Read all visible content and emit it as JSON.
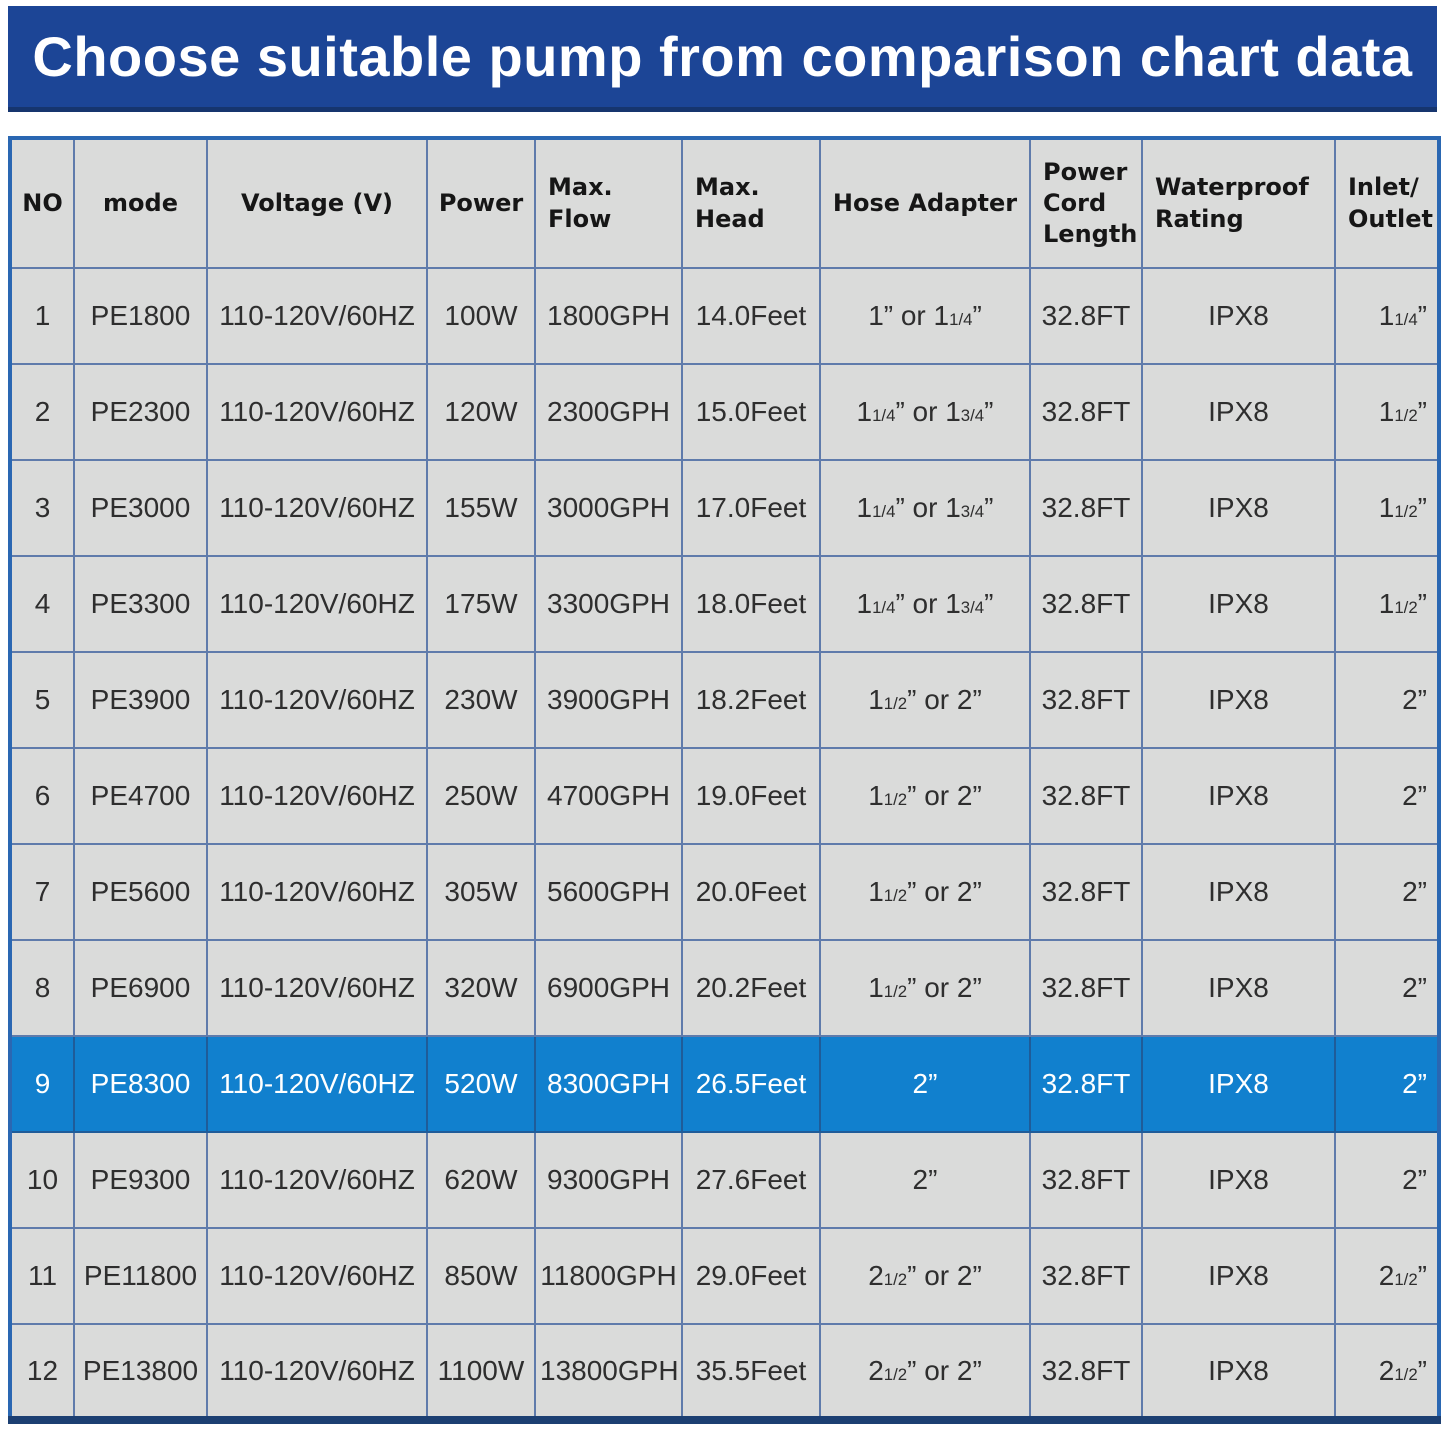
{
  "title": "Choose suitable pump from comparison chart data",
  "colors": {
    "banner": "#1c4596",
    "banner_edge": "#16356e",
    "highlight": "#1180ce",
    "cell_bg": "#dadbda",
    "grid": "#5f7bab",
    "outer_border": "#2a67b2",
    "bottom_border": "#1c3f72",
    "header_text": "#161616",
    "data_text": "#2e2e2e",
    "title_text": "#ffffff"
  },
  "table": {
    "headers": [
      "NO",
      "mode",
      "Voltage (V)",
      "Power",
      "Max.\nFlow",
      "Max.\nHead",
      "Hose Adapter",
      "Power\nCord\nLength",
      "Waterproof\nRating",
      "Inlet/\nOutlet"
    ],
    "rows": [
      {
        "no": 1,
        "mode": "PE1800",
        "voltage": "110-120V/60HZ",
        "power": "100W",
        "flow": "1800GPH",
        "head": "14.0Feet",
        "hose": "1” or 1¼”",
        "cord": "32.8FT",
        "waterproof": "IPX8",
        "inlet": "1¼”",
        "highlight": false
      },
      {
        "no": 2,
        "mode": "PE2300",
        "voltage": "110-120V/60HZ",
        "power": "120W",
        "flow": "2300GPH",
        "head": "15.0Feet",
        "hose": "1¼” or 1¾”",
        "cord": "32.8FT",
        "waterproof": "IPX8",
        "inlet": "1½”",
        "highlight": false
      },
      {
        "no": 3,
        "mode": "PE3000",
        "voltage": "110-120V/60HZ",
        "power": "155W",
        "flow": "3000GPH",
        "head": "17.0Feet",
        "hose": "1¼” or 1¾”",
        "cord": "32.8FT",
        "waterproof": "IPX8",
        "inlet": "1½”",
        "highlight": false
      },
      {
        "no": 4,
        "mode": "PE3300",
        "voltage": "110-120V/60HZ",
        "power": "175W",
        "flow": "3300GPH",
        "head": "18.0Feet",
        "hose": "1¼” or 1¾”",
        "cord": "32.8FT",
        "waterproof": "IPX8",
        "inlet": "1½”",
        "highlight": false
      },
      {
        "no": 5,
        "mode": "PE3900",
        "voltage": "110-120V/60HZ",
        "power": "230W",
        "flow": "3900GPH",
        "head": "18.2Feet",
        "hose": "1½” or 2”",
        "cord": "32.8FT",
        "waterproof": "IPX8",
        "inlet": "2”",
        "highlight": false
      },
      {
        "no": 6,
        "mode": "PE4700",
        "voltage": "110-120V/60HZ",
        "power": "250W",
        "flow": "4700GPH",
        "head": "19.0Feet",
        "hose": "1½” or 2”",
        "cord": "32.8FT",
        "waterproof": "IPX8",
        "inlet": "2”",
        "highlight": false
      },
      {
        "no": 7,
        "mode": "PE5600",
        "voltage": "110-120V/60HZ",
        "power": "305W",
        "flow": "5600GPH",
        "head": "20.0Feet",
        "hose": "1½” or 2”",
        "cord": "32.8FT",
        "waterproof": "IPX8",
        "inlet": "2”",
        "highlight": false
      },
      {
        "no": 8,
        "mode": "PE6900",
        "voltage": "110-120V/60HZ",
        "power": "320W",
        "flow": "6900GPH",
        "head": "20.2Feet",
        "hose": "1½” or 2”",
        "cord": "32.8FT",
        "waterproof": "IPX8",
        "inlet": "2”",
        "highlight": false
      },
      {
        "no": 9,
        "mode": "PE8300",
        "voltage": "110-120V/60HZ",
        "power": "520W",
        "flow": "8300GPH",
        "head": "26.5Feet",
        "hose": "2”",
        "cord": "32.8FT",
        "waterproof": "IPX8",
        "inlet": "2”",
        "highlight": true
      },
      {
        "no": 10,
        "mode": "PE9300",
        "voltage": "110-120V/60HZ",
        "power": "620W",
        "flow": "9300GPH",
        "head": "27.6Feet",
        "hose": "2”",
        "cord": "32.8FT",
        "waterproof": "IPX8",
        "inlet": "2”",
        "highlight": false
      },
      {
        "no": 11,
        "mode": "PE11800",
        "voltage": "110-120V/60HZ",
        "power": "850W",
        "flow": "11800GPH",
        "head": "29.0Feet",
        "hose": "2½” or 2”",
        "cord": "32.8FT",
        "waterproof": "IPX8",
        "inlet": "2½”",
        "highlight": false
      },
      {
        "no": 12,
        "mode": "PE13800",
        "voltage": "110-120V/60HZ",
        "power": "1100W",
        "flow": "13800GPH",
        "head": "35.5Feet",
        "hose": "2½” or 2”",
        "cord": "32.8FT",
        "waterproof": "IPX8",
        "inlet": "2½”",
        "highlight": false
      }
    ]
  },
  "chart_data": {
    "type": "table",
    "title": "Choose suitable pump from comparison chart data",
    "columns": [
      "NO",
      "mode",
      "Voltage (V)",
      "Power",
      "Max. Flow",
      "Max. Head",
      "Hose Adapter",
      "Power Cord Length",
      "Waterproof Rating",
      "Inlet/Outlet"
    ],
    "rows": [
      [
        "1",
        "PE1800",
        "110-120V/60HZ",
        "100W",
        "1800GPH",
        "14.0Feet",
        "1” or 1¼”",
        "32.8FT",
        "IPX8",
        "1¼”"
      ],
      [
        "2",
        "PE2300",
        "110-120V/60HZ",
        "120W",
        "2300GPH",
        "15.0Feet",
        "1¼” or 1¾”",
        "32.8FT",
        "IPX8",
        "1½”"
      ],
      [
        "3",
        "PE3000",
        "110-120V/60HZ",
        "155W",
        "3000GPH",
        "17.0Feet",
        "1¼” or 1¾”",
        "32.8FT",
        "IPX8",
        "1½”"
      ],
      [
        "4",
        "PE3300",
        "110-120V/60HZ",
        "175W",
        "3300GPH",
        "18.0Feet",
        "1¼” or 1¾”",
        "32.8FT",
        "IPX8",
        "1½”"
      ],
      [
        "5",
        "PE3900",
        "110-120V/60HZ",
        "230W",
        "3900GPH",
        "18.2Feet",
        "1½” or 2”",
        "32.8FT",
        "IPX8",
        "2”"
      ],
      [
        "6",
        "PE4700",
        "110-120V/60HZ",
        "250W",
        "4700GPH",
        "19.0Feet",
        "1½” or 2”",
        "32.8FT",
        "IPX8",
        "2”"
      ],
      [
        "7",
        "PE5600",
        "110-120V/60HZ",
        "305W",
        "5600GPH",
        "20.0Feet",
        "1½” or 2”",
        "32.8FT",
        "IPX8",
        "2”"
      ],
      [
        "8",
        "PE6900",
        "110-120V/60HZ",
        "320W",
        "6900GPH",
        "20.2Feet",
        "1½” or 2”",
        "32.8FT",
        "IPX8",
        "2”"
      ],
      [
        "9",
        "PE8300",
        "110-120V/60HZ",
        "520W",
        "8300GPH",
        "26.5Feet",
        "2”",
        "32.8FT",
        "IPX8",
        "2”"
      ],
      [
        "10",
        "PE9300",
        "110-120V/60HZ",
        "620W",
        "9300GPH",
        "27.6Feet",
        "2”",
        "32.8FT",
        "IPX8",
        "2”"
      ],
      [
        "11",
        "PE11800",
        "110-120V/60HZ",
        "850W",
        "11800GPH",
        "29.0Feet",
        "2½” or 2”",
        "32.8FT",
        "IPX8",
        "2½”"
      ],
      [
        "12",
        "PE13800",
        "110-120V/60HZ",
        "1100W",
        "13800GPH",
        "35.5Feet",
        "2½” or 2”",
        "32.8FT",
        "IPX8",
        "2½”"
      ]
    ],
    "highlighted_row": {
      "no": "9",
      "mode": "PE8300"
    },
    "layout": {
      "grid": true,
      "header_row": true,
      "highlight_color": "#1180ce"
    }
  }
}
